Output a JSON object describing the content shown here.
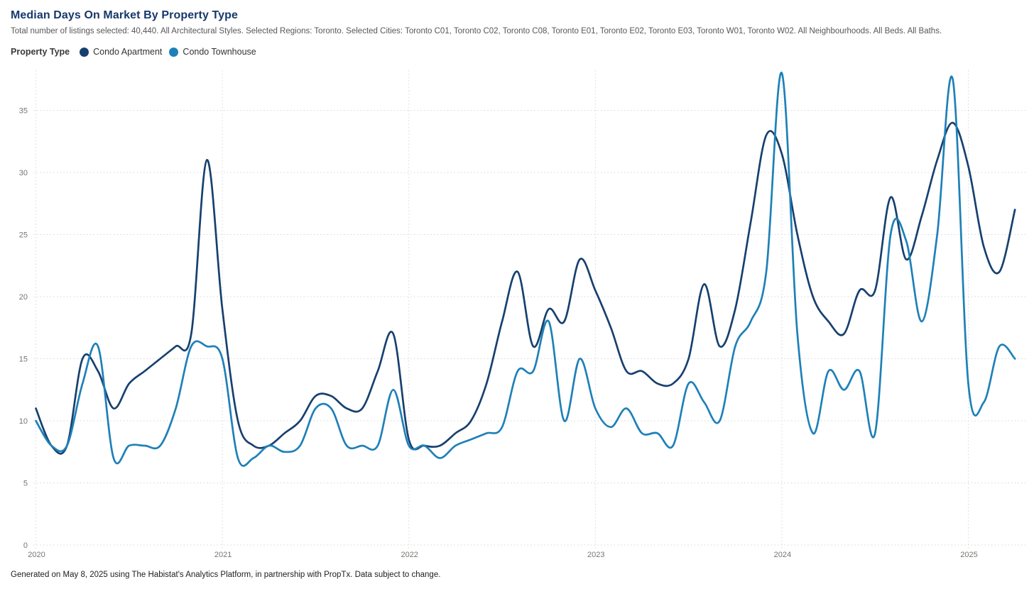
{
  "header": {
    "title": "Median Days On Market By Property Type",
    "subtitle": "Total number of listings selected: 40,440. All Architectural Styles. Selected Regions: Toronto. Selected Cities: Toronto C01, Toronto C02, Toronto C08, Toronto E01, Toronto E02, Toronto E03, Toronto W01, Toronto W02. All Neighbourhoods. All Beds. All Baths."
  },
  "legend": {
    "label": "Property Type",
    "items": [
      {
        "label": "Condo Apartment",
        "color": "#17406f"
      },
      {
        "label": "Condo Townhouse",
        "color": "#1e80b8"
      }
    ]
  },
  "chart_data": {
    "type": "line",
    "title": "Median Days On Market By Property Type",
    "xlabel": "",
    "ylabel": "",
    "x_start": "2020-01",
    "x_interval": "month",
    "x_tick_labels": [
      "2020",
      "2021",
      "2022",
      "2023",
      "2024",
      "2025"
    ],
    "y_tick_labels": [
      "0",
      "5",
      "10",
      "15",
      "20",
      "25",
      "30",
      "35"
    ],
    "y_ticks": [
      0,
      5,
      10,
      15,
      20,
      25,
      30,
      35
    ],
    "ylim": [
      0,
      38.5
    ],
    "grid": "dotted",
    "legend_position": "top-left",
    "series": [
      {
        "name": "Condo Apartment",
        "color": "#17406f",
        "values": [
          11,
          8,
          8,
          15,
          14,
          11,
          13,
          14,
          15,
          16,
          17,
          31,
          19,
          10,
          8,
          8,
          9,
          10,
          12,
          12,
          11,
          11,
          14,
          17,
          8.5,
          8,
          8,
          9,
          10,
          13,
          18,
          22,
          16,
          19,
          18,
          23,
          20.5,
          17.5,
          14,
          14,
          13,
          13,
          15,
          21,
          16,
          19,
          26,
          33,
          31.5,
          25,
          20,
          18,
          17,
          20.5,
          20.5,
          28,
          23,
          26.5,
          31,
          34,
          30.5,
          24,
          22,
          27
        ]
      },
      {
        "name": "Condo Townhouse",
        "color": "#1e80b8",
        "values": [
          10,
          8,
          8,
          13,
          16,
          7,
          8,
          8,
          8,
          11,
          16,
          16,
          15,
          7,
          7,
          8,
          7.5,
          8,
          11,
          11,
          8,
          8,
          8,
          12.5,
          8,
          8,
          7,
          8,
          8.5,
          9,
          9.5,
          14,
          14,
          18,
          10,
          15,
          11,
          9.5,
          11,
          9,
          9,
          8,
          13,
          11.5,
          10,
          16,
          18,
          22,
          38,
          17,
          9,
          14,
          12.5,
          14,
          9,
          25,
          24.5,
          18,
          25,
          37.5,
          13,
          11.5,
          16,
          15
        ]
      }
    ]
  },
  "footer": {
    "text": "Generated on May 8, 2025 using The Habistat's Analytics Platform, in partnership with PropTx. Data subject to change."
  }
}
